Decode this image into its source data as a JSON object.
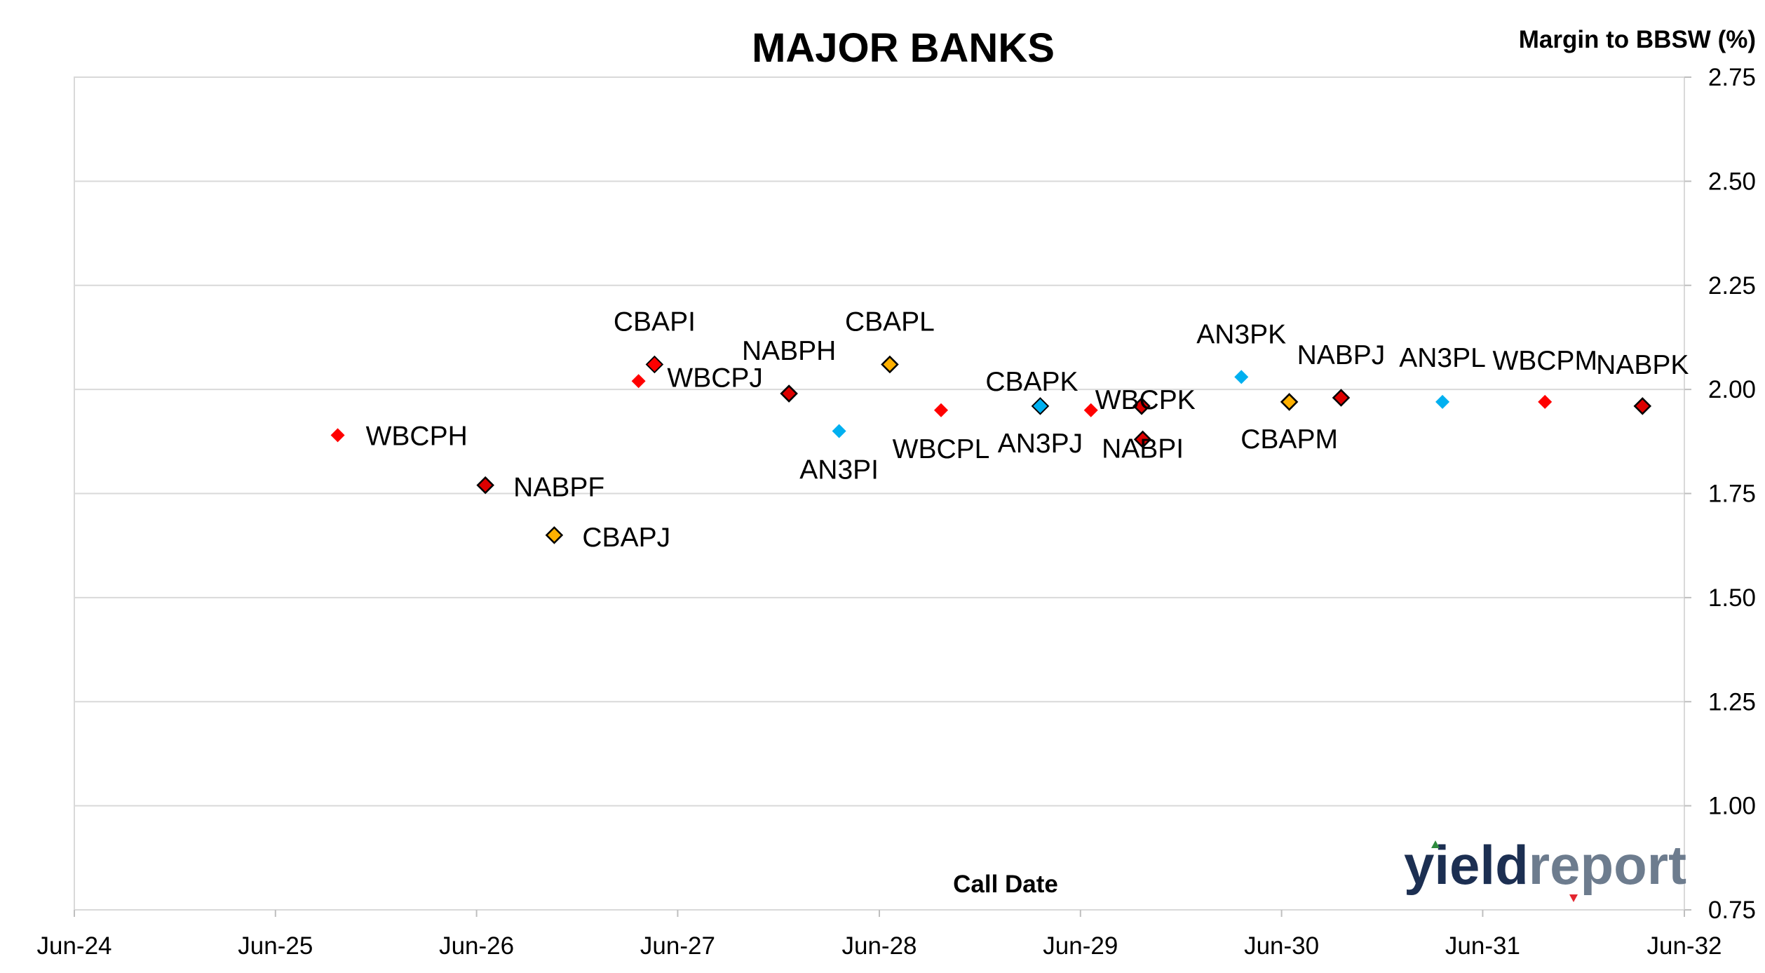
{
  "chart_data": {
    "type": "scatter",
    "title": "MAJOR BANKS",
    "ylabel": "Margin to BBSW (%)",
    "xlabel": "Call Date",
    "ylim": [
      0.75,
      2.75
    ],
    "y_ticks": [
      "2.75",
      "2.50",
      "2.25",
      "2.00",
      "1.75",
      "1.50",
      "1.25",
      "1.00",
      "0.75"
    ],
    "x_ticks": [
      "Jun-24",
      "Jun-25",
      "Jun-26",
      "Jun-27",
      "Jun-28",
      "Jun-29",
      "Jun-30",
      "Jun-31",
      "Jun-32"
    ],
    "xlim": [
      "2024-06-01",
      "2032-06-01"
    ],
    "grid": "horizontal",
    "y_axis_position": "right",
    "colors": {
      "WBC": "#ff0000",
      "NAB": "#dd0000",
      "CBA": "#ffb000",
      "ANZ": "#00b0f0"
    },
    "points": [
      {
        "label": "WBCPH",
        "x": "2025-09-22",
        "y": 1.89,
        "bank": "WBC"
      },
      {
        "label": "NABPF",
        "x": "2026-06-17",
        "y": 1.77,
        "bank": "NAB"
      },
      {
        "label": "CBAPJ",
        "x": "2026-10-20",
        "y": 1.65,
        "bank": "CBA"
      },
      {
        "label": "",
        "x": "2027-03-22",
        "y": 2.02,
        "bank": "WBC"
      },
      {
        "label": "CBAPI",
        "x": "2027-04-20",
        "y": 2.06,
        "bank": "CBA"
      },
      {
        "label": "WBCPJ",
        "x": "2027-04-20",
        "y": 2.06,
        "bank": "WBC"
      },
      {
        "label": "NABPH",
        "x": "2027-12-20",
        "y": 1.99,
        "bank": "NAB"
      },
      {
        "label": "AN3PI",
        "x": "2028-03-20",
        "y": 1.9,
        "bank": "ANZ"
      },
      {
        "label": "CBAPL",
        "x": "2028-06-20",
        "y": 2.06,
        "bank": "CBA"
      },
      {
        "label": "WBCPL",
        "x": "2028-09-21",
        "y": 1.95,
        "bank": "WBC"
      },
      {
        "label": "CBAPK",
        "x": "2029-03-20",
        "y": 1.96,
        "bank": "CBA"
      },
      {
        "label": "AN3PJ",
        "x": "2029-03-20",
        "y": 1.96,
        "bank": "ANZ"
      },
      {
        "label": "WBCPK",
        "x": "2029-06-20",
        "y": 1.95,
        "bank": "WBC"
      },
      {
        "label": "",
        "x": "2029-09-20",
        "y": 1.96,
        "bank": "NAB"
      },
      {
        "label": "NABPI",
        "x": "2029-09-22",
        "y": 1.88,
        "bank": "NAB"
      },
      {
        "label": "AN3PK",
        "x": "2030-03-20",
        "y": 2.03,
        "bank": "ANZ"
      },
      {
        "label": "CBAPM",
        "x": "2030-06-15",
        "y": 1.97,
        "bank": "CBA"
      },
      {
        "label": "NABPJ",
        "x": "2030-09-17",
        "y": 1.98,
        "bank": "NAB"
      },
      {
        "label": "AN3PL",
        "x": "2031-03-20",
        "y": 1.97,
        "bank": "ANZ"
      },
      {
        "label": "WBCPM",
        "x": "2031-09-22",
        "y": 1.97,
        "bank": "WBC"
      },
      {
        "label": "NABPK",
        "x": "2032-03-17",
        "y": 1.96,
        "bank": "NAB"
      }
    ]
  },
  "logo": {
    "part1": "yield",
    "part2": "report"
  }
}
